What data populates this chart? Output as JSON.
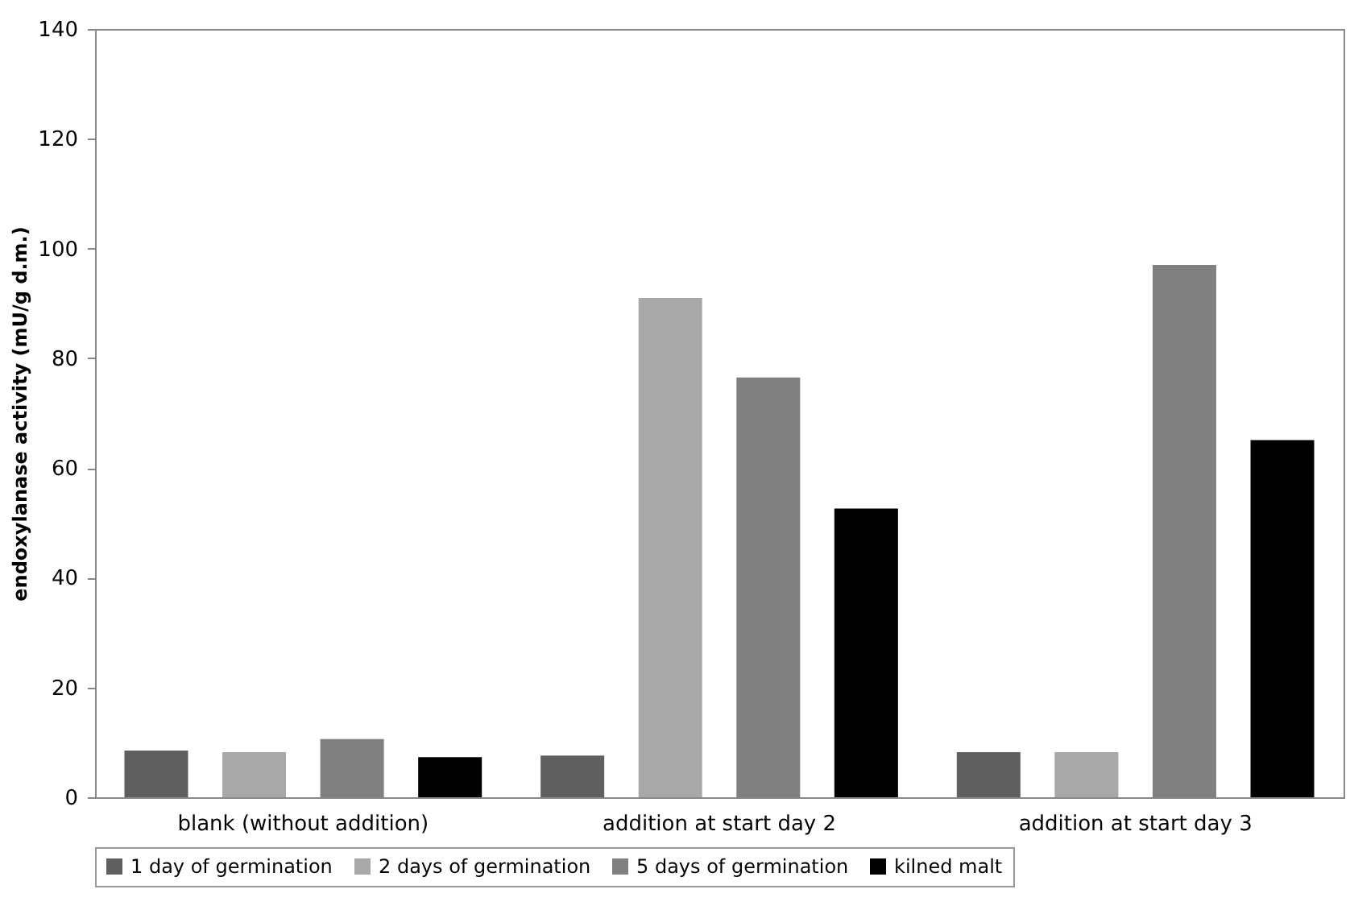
{
  "chart_data": {
    "type": "bar",
    "ylabel": "endoxylanase activity (mU/g d.m.)",
    "categories": [
      "blank (without addition)",
      "addition at start day 2",
      "addition at start day 3"
    ],
    "series": [
      {
        "name": "1 day of germination",
        "color": "#5f5f5f",
        "values": [
          8.5,
          7.6,
          8.2
        ]
      },
      {
        "name": "2 days of germination",
        "color": "#a8a8a8",
        "values": [
          8.2,
          91,
          8.2
        ]
      },
      {
        "name": "5 days of germination",
        "color": "#808080",
        "values": [
          10.6,
          76.5,
          97
        ]
      },
      {
        "name": "kilned malt",
        "color": "#000000",
        "values": [
          7.3,
          52.6,
          65.1
        ]
      }
    ],
    "ylim": [
      0,
      140
    ],
    "yticks": [
      0,
      20,
      40,
      60,
      80,
      100,
      120,
      140
    ],
    "grid": false,
    "legend": "bottom"
  }
}
